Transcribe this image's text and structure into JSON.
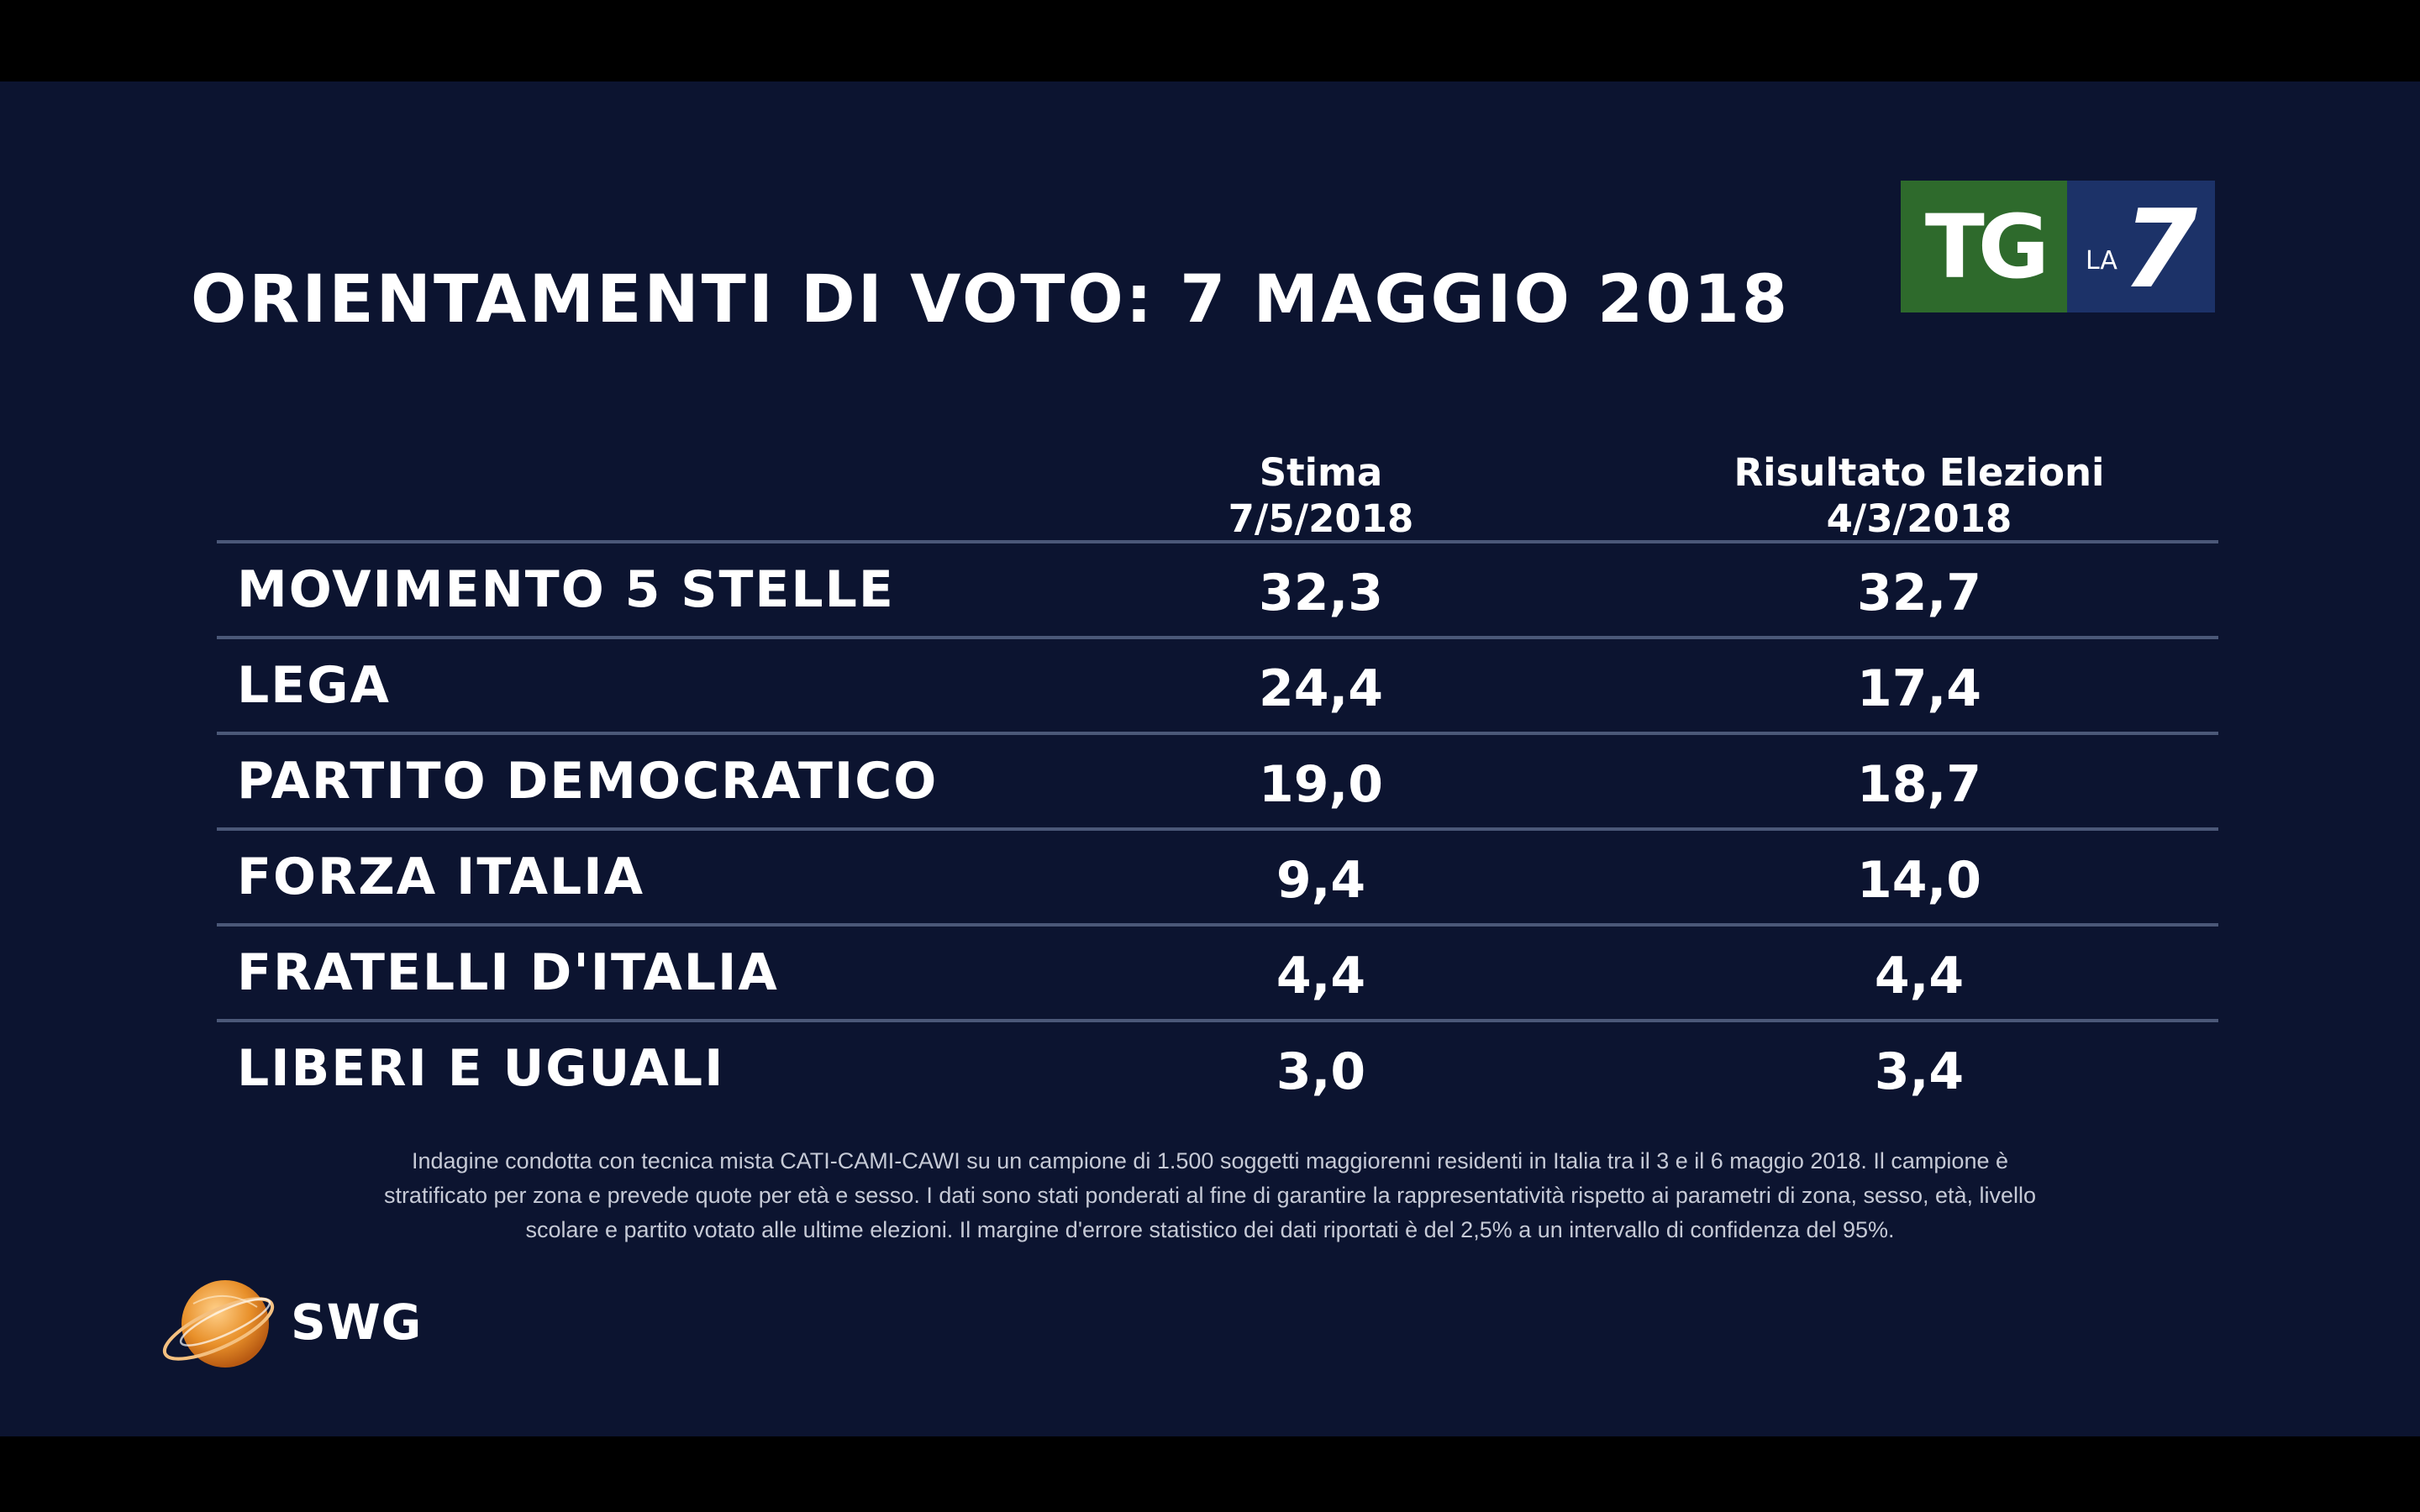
{
  "title": "ORIENTAMENTI DI VOTO: 7 MAGGIO 2018",
  "logo": {
    "tg": "TG",
    "la": "LA",
    "seven": "7",
    "colors": {
      "tg_bg": "#2e6a2c",
      "la7_bg": "#1c3268"
    }
  },
  "headers": {
    "stima": {
      "line1": "Stima",
      "line2": "7/5/2018"
    },
    "risultato": {
      "line1": "Risultato Elezioni",
      "line2": "4/3/2018"
    }
  },
  "chart_data": {
    "type": "table",
    "title": "ORIENTAMENTI DI VOTO: 7 MAGGIO 2018",
    "columns": [
      "Stima 7/5/2018",
      "Risultato Elezioni 4/3/2018"
    ],
    "rows": [
      {
        "party": "MOVIMENTO 5 STELLE",
        "stima": "32,3",
        "risultato": "32,7"
      },
      {
        "party": "LEGA",
        "stima": "24,4",
        "risultato": "17,4"
      },
      {
        "party": "PARTITO DEMOCRATICO",
        "stima": "19,0",
        "risultato": "18,7"
      },
      {
        "party": "FORZA ITALIA",
        "stima": "9,4",
        "risultato": "14,0"
      },
      {
        "party": "FRATELLI D'ITALIA",
        "stima": "4,4",
        "risultato": "4,4"
      },
      {
        "party": "LIBERI E UGUALI",
        "stima": "3,0",
        "risultato": "3,4"
      }
    ]
  },
  "footnote": {
    "line1": "Indagine condotta con tecnica mista CATI-CAMI-CAWI su un campione di 1.500 soggetti maggiorenni residenti in Italia tra il 3 e il 6 maggio 2018. Il campione è",
    "line2": "stratificato per zona e prevede quote per età e sesso. I dati sono stati ponderati al fine di garantire la rappresentatività rispetto ai parametri di zona, sesso, età, livello",
    "line3": "scolare e partito votato alle ultime elezioni. Il margine d'errore statistico dei dati riportati è del 2,5% a un intervallo di confidenza del 95%."
  },
  "brand": {
    "name": "SWG",
    "icon": "swg-globe-icon",
    "accent": "#e8902a"
  }
}
